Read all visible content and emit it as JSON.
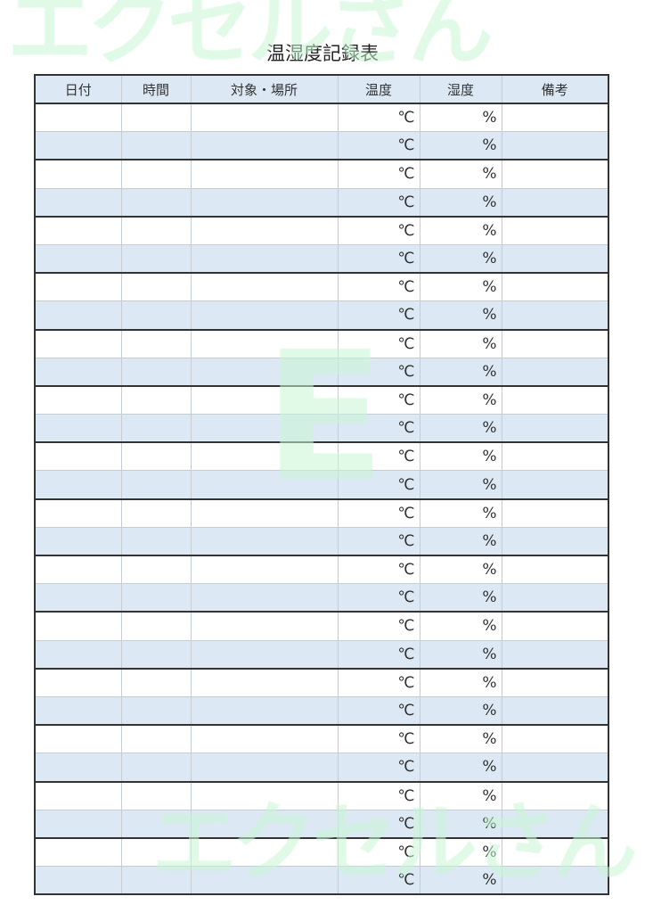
{
  "watermark": {
    "text": "エクセルさん",
    "center_letter": "E",
    "color": "#c8f5d4"
  },
  "title": "温湿度記録表",
  "columns": [
    "日付",
    "時間",
    "対象・場所",
    "温度",
    "湿度",
    "備考"
  ],
  "units": {
    "temperature": "℃",
    "humidity": "%"
  },
  "row_count": 28,
  "colors": {
    "header_bg": "#dce9f5",
    "stripe_bg": "#dce9f5",
    "border": "#333333"
  }
}
